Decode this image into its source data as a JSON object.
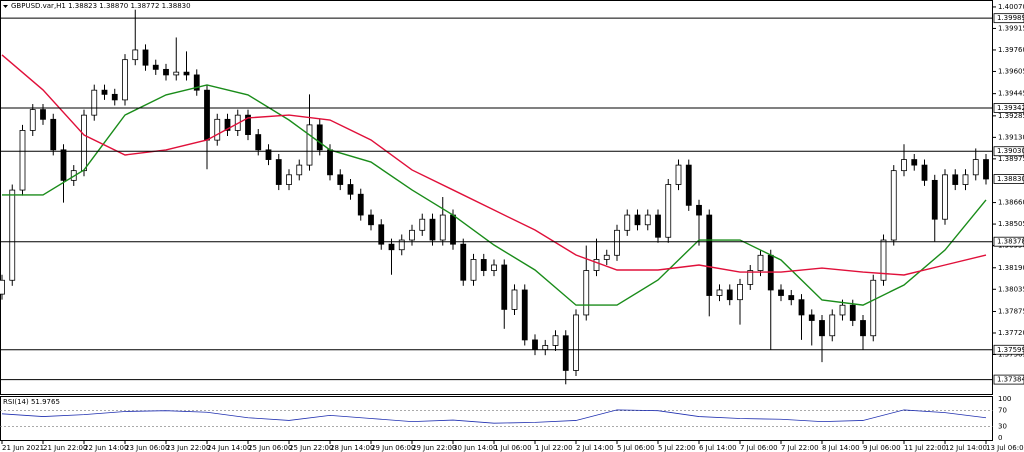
{
  "chart_data": {
    "type": "candlestick",
    "title": "GBPUSD.var,H1  1.38823 1.38870 1.38772 1.38830",
    "categories": [
      "21 Jun 2021",
      null,
      null,
      null,
      "21 Jun 22:00",
      null,
      null,
      null,
      "22 Jun 14:00",
      null,
      null,
      null,
      "23 Jun 06:00",
      null,
      null,
      null,
      "23 Jun 22:00",
      null,
      null,
      null,
      "24 Jun 14:00",
      null,
      null,
      null,
      "25 Jun 06:00",
      null,
      null,
      null,
      "25 Jun 22:00",
      null,
      null,
      null,
      "28 Jun 14:00",
      null,
      null,
      null,
      "29 Jun 06:00",
      null,
      null,
      null,
      "29 Jun 22:00",
      null,
      null,
      null,
      "30 Jun 14:00",
      null,
      null,
      null,
      "1 Jul 06:00",
      null,
      null,
      null,
      "1 Jul 22:00",
      null,
      null,
      null,
      "2 Jul 14:00",
      null,
      null,
      null,
      "5 Jul 06:00",
      null,
      null,
      null,
      "5 Jul 22:00",
      null,
      null,
      null,
      "6 Jul 14:00",
      null,
      null,
      null,
      "7 Jul 06:00",
      null,
      null,
      null,
      "7 Jul 22:00",
      null,
      null,
      null,
      "8 Jul 14:00",
      null,
      null,
      null,
      "9 Jul 06:00",
      null,
      null,
      null,
      "11 Jul 22:00",
      null,
      null,
      null,
      "12 Jul 14:00",
      null,
      null,
      null,
      "13 Jul 06:00"
    ],
    "open": [
      1.38,
      1.381,
      1.3875,
      1.3918,
      1.3933,
      1.3926,
      1.3904,
      1.3882,
      1.3889,
      1.3929,
      1.3947,
      1.3944,
      1.394,
      1.3969,
      1.3976,
      1.3965,
      1.3962,
      1.3958,
      1.396,
      1.3958,
      1.3947,
      1.3911,
      1.3926,
      1.3918,
      1.3929,
      1.3915,
      1.3904,
      1.3897,
      1.3879,
      1.3886,
      1.3893,
      1.3922,
      1.3904,
      1.3886,
      1.3879,
      1.3872,
      1.3857,
      1.385,
      1.3836,
      1.3832,
      1.3839,
      1.3846,
      1.3854,
      1.3839,
      1.3857,
      1.3836,
      1.381,
      1.3825,
      1.3817,
      1.3821,
      1.3789,
      1.3803,
      1.3767,
      1.376,
      1.3763,
      1.377,
      1.3745,
      1.3785,
      1.3817,
      1.3825,
      1.3828,
      1.3846,
      1.3857,
      1.385,
      1.3857,
      1.3841,
      1.3879,
      1.3893,
      1.3864,
      1.3857,
      1.3799,
      1.3803,
      1.3796,
      1.3807,
      1.3817,
      1.3828,
      1.3803,
      1.3799,
      1.3796,
      1.3785,
      1.3781,
      1.377,
      1.3785,
      1.3792,
      1.3781,
      1.377,
      1.381,
      1.3839,
      1.3889,
      1.3897,
      1.3893,
      1.3882,
      1.3854,
      1.3886,
      1.3879,
      1.3886,
      1.3897
    ],
    "high": [
      1.3814,
      1.3879,
      1.3922,
      1.3937,
      1.3937,
      1.393,
      1.3908,
      1.3893,
      1.3933,
      1.3951,
      1.3951,
      1.3948,
      1.3973,
      1.4005,
      1.398,
      1.3969,
      1.3966,
      1.3985,
      1.3975,
      1.3962,
      1.3951,
      1.393,
      1.393,
      1.3933,
      1.3933,
      1.3919,
      1.3908,
      1.3901,
      1.389,
      1.3897,
      1.3944,
      1.3926,
      1.3908,
      1.389,
      1.3883,
      1.3876,
      1.3861,
      1.3854,
      1.384,
      1.3843,
      1.385,
      1.3858,
      1.3858,
      1.387,
      1.3861,
      1.384,
      1.3829,
      1.3829,
      1.3825,
      1.3825,
      1.3807,
      1.3807,
      1.3771,
      1.3767,
      1.3774,
      1.3774,
      1.3789,
      1.3835,
      1.384,
      1.3832,
      1.385,
      1.3861,
      1.3861,
      1.3861,
      1.3861,
      1.3883,
      1.3897,
      1.3897,
      1.3868,
      1.3861,
      1.3807,
      1.3807,
      1.3811,
      1.3821,
      1.3832,
      1.3832,
      1.3807,
      1.3803,
      1.38,
      1.3789,
      1.3785,
      1.3789,
      1.3796,
      1.3796,
      1.3785,
      1.3814,
      1.3843,
      1.3893,
      1.3908,
      1.3901,
      1.3897,
      1.3886,
      1.389,
      1.389,
      1.389,
      1.3905,
      1.3901
    ],
    "low": [
      1.3796,
      1.3806,
      1.3871,
      1.3914,
      1.3922,
      1.39,
      1.3866,
      1.3878,
      1.3885,
      1.3925,
      1.394,
      1.3936,
      1.3936,
      1.3965,
      1.3961,
      1.3958,
      1.3954,
      1.3954,
      1.3954,
      1.3943,
      1.389,
      1.3907,
      1.3914,
      1.3914,
      1.3911,
      1.39,
      1.3893,
      1.3875,
      1.3875,
      1.3882,
      1.3889,
      1.39,
      1.3882,
      1.3875,
      1.3868,
      1.3853,
      1.3846,
      1.3832,
      1.3814,
      1.3828,
      1.3835,
      1.3842,
      1.3835,
      1.3835,
      1.3832,
      1.3806,
      1.3806,
      1.3813,
      1.3813,
      1.3775,
      1.3785,
      1.3763,
      1.3756,
      1.3756,
      1.3759,
      1.3735,
      1.3741,
      1.3781,
      1.3813,
      1.3821,
      1.3824,
      1.3842,
      1.3846,
      1.3846,
      1.3837,
      1.3837,
      1.3875,
      1.386,
      1.3835,
      1.3784,
      1.3795,
      1.3792,
      1.3778,
      1.3803,
      1.3813,
      1.376,
      1.3795,
      1.3792,
      1.3767,
      1.3763,
      1.3751,
      1.3766,
      1.3781,
      1.3777,
      1.376,
      1.3766,
      1.3806,
      1.3835,
      1.3885,
      1.3889,
      1.3878,
      1.3838,
      1.385,
      1.3875,
      1.3875,
      1.3882,
      1.3879
    ],
    "close": [
      1.381,
      1.3875,
      1.3918,
      1.3933,
      1.3926,
      1.3904,
      1.3882,
      1.3889,
      1.3929,
      1.3947,
      1.3944,
      1.394,
      1.3969,
      1.3976,
      1.3965,
      1.3962,
      1.3958,
      1.396,
      1.3958,
      1.3947,
      1.3911,
      1.3926,
      1.3918,
      1.3929,
      1.3915,
      1.3904,
      1.3897,
      1.3879,
      1.3886,
      1.3893,
      1.3922,
      1.3904,
      1.3886,
      1.3879,
      1.3872,
      1.3857,
      1.385,
      1.3836,
      1.3832,
      1.3839,
      1.3846,
      1.3854,
      1.3839,
      1.3857,
      1.3836,
      1.381,
      1.3825,
      1.3817,
      1.3821,
      1.3789,
      1.3803,
      1.3767,
      1.376,
      1.3763,
      1.377,
      1.3745,
      1.3785,
      1.3817,
      1.3825,
      1.3828,
      1.3846,
      1.3857,
      1.385,
      1.3857,
      1.3841,
      1.3879,
      1.3893,
      1.3864,
      1.3857,
      1.3799,
      1.3803,
      1.3796,
      1.3807,
      1.3817,
      1.3828,
      1.3803,
      1.3799,
      1.3796,
      1.3785,
      1.3781,
      1.377,
      1.3785,
      1.3792,
      1.3781,
      1.377,
      1.381,
      1.3839,
      1.3889,
      1.3897,
      1.3893,
      1.3882,
      1.3854,
      1.3886,
      1.3879,
      1.3886,
      1.3897,
      1.3883
    ],
    "ylim": [
      1.37273,
      1.4012
    ],
    "yticks": [
      {
        "value": 1.4007,
        "label": "1.40070"
      },
      1.39915,
      {
        "value": 1.3976,
        "label": "1.39760"
      },
      {
        "value": 1.39605,
        "label": "1.39605"
      },
      1.39445,
      1.39285,
      {
        "value": 1.3913,
        "label": "1.39130"
      },
      1.38975,
      {
        "value": 1.3866,
        "label": "1.38660"
      },
      1.38505,
      {
        "value": 1.3835,
        "label": "1.38350"
      },
      {
        "value": 1.3819,
        "label": "1.38190"
      },
      1.38035,
      1.37875,
      {
        "value": 1.3772,
        "label": "1.37720"
      },
      1.37565
    ],
    "levels": [
      1.39989,
      1.39342,
      {
        "value": 1.3903,
        "label": "1.39030"
      },
      1.38378,
      1.37599,
      1.37384
    ],
    "current_price": {
      "value": 1.3883,
      "label": "1.38830"
    },
    "ma_lines": [
      {
        "color": "#1a8c1a",
        "x": [
          0,
          4,
          8,
          12,
          16,
          20,
          24,
          28,
          32,
          36,
          40,
          44,
          48,
          52,
          56,
          60,
          64,
          68,
          72,
          76,
          80,
          84,
          88,
          92,
          96
        ],
        "values": [
          1.38715,
          1.38715,
          1.38895,
          1.39291,
          1.39436,
          1.39508,
          1.39436,
          1.39255,
          1.39039,
          1.38952,
          1.38751,
          1.3857,
          1.38354,
          1.38174,
          1.37921,
          1.37921,
          1.38102,
          1.3839,
          1.3839,
          1.38246,
          1.37958,
          1.37921,
          1.38066,
          1.38318,
          1.38679
        ]
      },
      {
        "color": "#e0103a",
        "x": [
          0,
          4,
          8,
          12,
          16,
          20,
          24,
          28,
          32,
          36,
          40,
          44,
          48,
          52,
          56,
          60,
          64,
          68,
          72,
          76,
          80,
          84,
          88,
          92,
          96
        ],
        "values": [
          1.39724,
          1.39472,
          1.39147,
          1.39003,
          1.39039,
          1.39111,
          1.3927,
          1.39291,
          1.39255,
          1.39111,
          1.38895,
          1.38751,
          1.38606,
          1.38462,
          1.38282,
          1.38174,
          1.38174,
          1.3821,
          1.38159,
          1.38159,
          1.38188,
          1.38159,
          1.38138,
          1.3821,
          1.38282
        ]
      }
    ],
    "rsi": {
      "title": "RSI(14) 51.9765",
      "color": "#1f2fb0",
      "ylim": [
        0,
        100
      ],
      "yticks": [
        100,
        70,
        30,
        0
      ],
      "x": [
        0,
        4,
        8,
        12,
        16,
        20,
        24,
        28,
        32,
        36,
        40,
        44,
        48,
        52,
        56,
        60,
        64,
        68,
        72,
        76,
        80,
        84,
        88,
        92,
        96
      ],
      "values": [
        62,
        55,
        60,
        68,
        70,
        66,
        52,
        45,
        58,
        50,
        42,
        46,
        38,
        40,
        45,
        72,
        70,
        55,
        50,
        48,
        42,
        45,
        72,
        65,
        52
      ]
    }
  }
}
